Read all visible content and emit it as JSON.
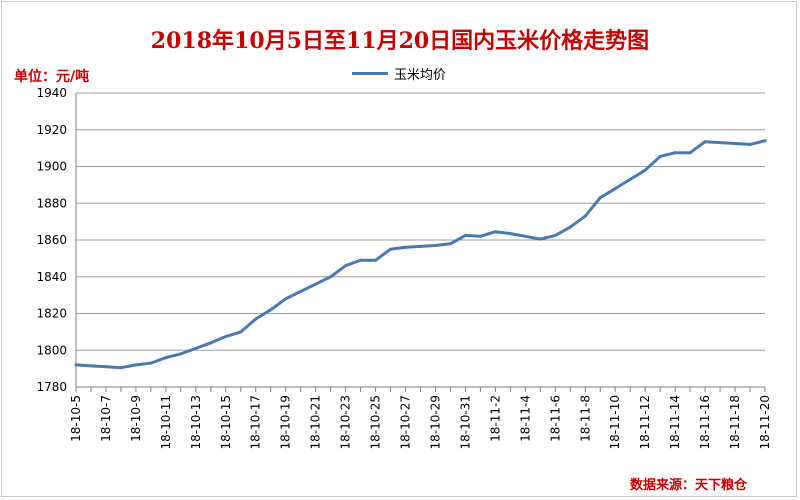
{
  "chart_data": {
    "type": "line",
    "title": "2018年10月5日至11月20日国内玉米价格走势图",
    "unit_label": "单位：元/吨",
    "source_label": "数据来源：天下粮仓",
    "ylim": [
      1780,
      1940
    ],
    "yticks": [
      1780,
      1800,
      1820,
      1840,
      1860,
      1880,
      1900,
      1920,
      1940
    ],
    "grid": true,
    "legend_position": "top-center",
    "x": [
      "18-10-5",
      "18-10-6",
      "18-10-7",
      "18-10-8",
      "18-10-9",
      "18-10-10",
      "18-10-11",
      "18-10-12",
      "18-10-13",
      "18-10-14",
      "18-10-15",
      "18-10-16",
      "18-10-17",
      "18-10-18",
      "18-10-19",
      "18-10-20",
      "18-10-21",
      "18-10-22",
      "18-10-23",
      "18-10-24",
      "18-10-25",
      "18-10-26",
      "18-10-27",
      "18-10-28",
      "18-10-29",
      "18-10-30",
      "18-10-31",
      "18-11-1",
      "18-11-2",
      "18-11-3",
      "18-11-4",
      "18-11-5",
      "18-11-6",
      "18-11-7",
      "18-11-8",
      "18-11-9",
      "18-11-10",
      "18-11-11",
      "18-11-12",
      "18-11-13",
      "18-11-14",
      "18-11-15",
      "18-11-16",
      "18-11-17",
      "18-11-18",
      "18-11-19",
      "18-11-20"
    ],
    "x_tick_labels": [
      "18-10-5",
      "18-10-7",
      "18-10-9",
      "18-10-11",
      "18-10-13",
      "18-10-15",
      "18-10-17",
      "18-10-19",
      "18-10-21",
      "18-10-23",
      "18-10-25",
      "18-10-27",
      "18-10-29",
      "18-10-31",
      "18-11-2",
      "18-11-4",
      "18-11-6",
      "18-11-8",
      "18-11-10",
      "18-11-12",
      "18-11-14",
      "18-11-16",
      "18-11-18",
      "18-11-20"
    ],
    "series": [
      {
        "name": "玉米均价",
        "color": "#4a79b0",
        "values": [
          1792,
          1791.5,
          1791,
          1790.5,
          1792,
          1793,
          1796,
          1798,
          1801,
          1804,
          1807.5,
          1810,
          1817,
          1822,
          1828,
          1832,
          1836,
          1840,
          1846,
          1849,
          1849,
          1855,
          1856,
          1856.5,
          1857,
          1858,
          1862.5,
          1862,
          1864.5,
          1863.5,
          1862,
          1860.5,
          1862.5,
          1867,
          1873,
          1883,
          1888,
          1893,
          1898,
          1905.5,
          1907.5,
          1907.5,
          1913.5,
          1913,
          1912.5,
          1912,
          1914
        ]
      }
    ]
  }
}
